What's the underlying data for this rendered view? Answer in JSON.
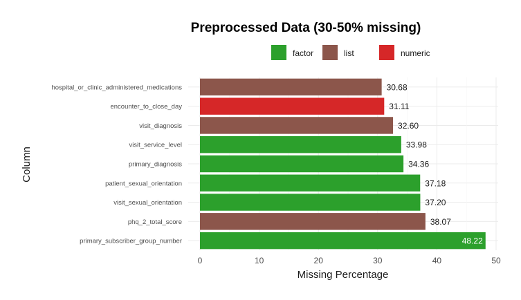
{
  "chart_data": {
    "type": "bar",
    "orientation": "horizontal",
    "title": "Preprocessed Data (30-50% missing)",
    "xlabel": "Missing Percentage",
    "ylabel": "Column",
    "xlim": [
      0,
      50
    ],
    "xticks": [
      0,
      10,
      20,
      30,
      40,
      50
    ],
    "grid": true,
    "legend": {
      "position": "top",
      "entries": [
        {
          "label": "factor",
          "color": "#2ca02c"
        },
        {
          "label": "list",
          "color": "#8c564b"
        },
        {
          "label": "numeric",
          "color": "#d62728"
        }
      ]
    },
    "bars": [
      {
        "category": "hospital_or_clinic_administered_medications",
        "value": 30.68,
        "label": "30.68",
        "group": "list"
      },
      {
        "category": "encounter_to_close_day",
        "value": 31.11,
        "label": "31.11",
        "group": "numeric"
      },
      {
        "category": "visit_diagnosis",
        "value": 32.6,
        "label": "32.60",
        "group": "list"
      },
      {
        "category": "visit_service_level",
        "value": 33.98,
        "label": "33.98",
        "group": "factor"
      },
      {
        "category": "primary_diagnosis",
        "value": 34.36,
        "label": "34.36",
        "group": "factor"
      },
      {
        "category": "patient_sexual_orientation",
        "value": 37.18,
        "label": "37.18",
        "group": "factor"
      },
      {
        "category": "visit_sexual_orientation",
        "value": 37.2,
        "label": "37.20",
        "group": "factor"
      },
      {
        "category": "phq_2_total_score",
        "value": 38.07,
        "label": "38.07",
        "group": "list"
      },
      {
        "category": "primary_subscriber_group_number",
        "value": 48.22,
        "label": "48.22",
        "group": "factor",
        "label_inside": true
      }
    ]
  }
}
